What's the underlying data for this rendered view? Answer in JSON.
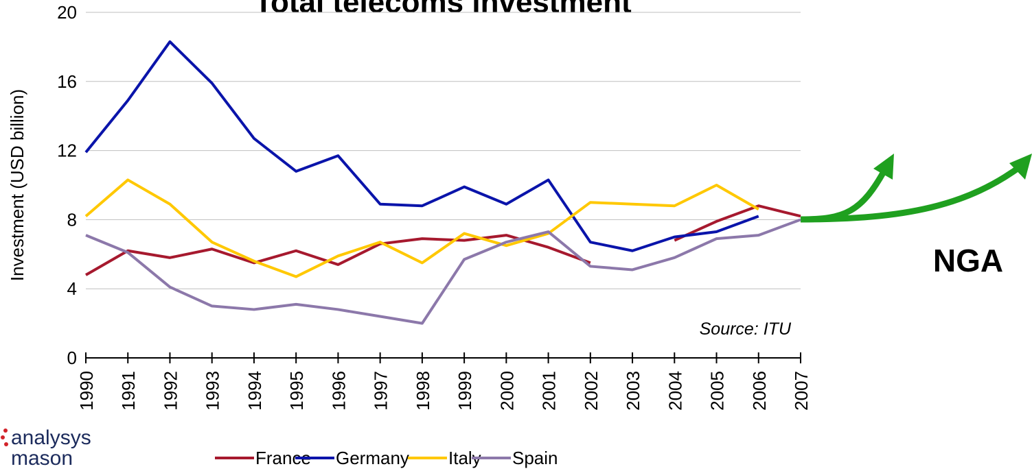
{
  "chart_data": {
    "type": "line",
    "title": "Total telecoms investment",
    "y_axis_label": "Investment (USD billion)",
    "annotations": [
      "Source: ITU",
      "NGA"
    ],
    "logo": [
      "analysys",
      "mason"
    ],
    "categories": [
      "1990",
      "1991",
      "1992",
      "1993",
      "1994",
      "1995",
      "1996",
      "1997",
      "1998",
      "1999",
      "2000",
      "2001",
      "2002",
      "2003",
      "2004",
      "2005",
      "2006",
      "2007"
    ],
    "series": [
      {
        "name": "France",
        "color": "#a6192e",
        "values": [
          4.8,
          6.2,
          5.8,
          6.3,
          5.5,
          6.2,
          5.4,
          6.6,
          6.9,
          6.8,
          7.1,
          6.4,
          5.5,
          null,
          6.8,
          7.9,
          8.8,
          8.2
        ]
      },
      {
        "name": "Germany",
        "color": "#0a14aa",
        "values": [
          11.9,
          14.9,
          18.3,
          15.9,
          12.7,
          10.8,
          11.7,
          8.9,
          8.8,
          9.9,
          8.9,
          10.3,
          6.7,
          6.2,
          7.0,
          7.3,
          8.2,
          null
        ]
      },
      {
        "name": "Italy",
        "color": "#ffc800",
        "values": [
          8.2,
          10.3,
          8.9,
          6.7,
          5.6,
          4.7,
          5.9,
          6.7,
          5.5,
          7.2,
          6.5,
          7.2,
          9.0,
          8.9,
          8.8,
          10.0,
          8.6,
          null
        ]
      },
      {
        "name": "Spain",
        "color": "#8c78aa",
        "values": [
          7.1,
          6.1,
          4.1,
          3.0,
          2.8,
          3.1,
          2.8,
          2.4,
          2.0,
          5.7,
          6.7,
          7.3,
          5.3,
          5.1,
          5.8,
          6.9,
          7.1,
          8.0
        ]
      }
    ],
    "ylim": [
      0,
      20
    ],
    "yticks": [
      0,
      4,
      8,
      12,
      16,
      20
    ],
    "grid": true
  }
}
